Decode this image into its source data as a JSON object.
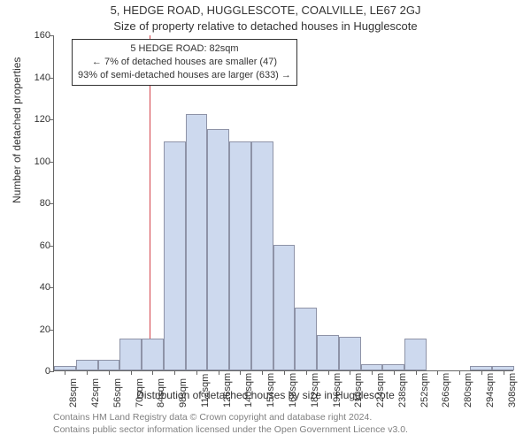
{
  "title": "5, HEDGE ROAD, HUGGLESCOTE, COALVILLE, LE67 2GJ",
  "subtitle": "Size of property relative to detached houses in Hugglescote",
  "yaxis_title": "Number of detached properties",
  "xaxis_title": "Distribution of detached houses by size in Hugglescote",
  "chart": {
    "type": "histogram",
    "bar_color": "#cdd9ee",
    "bar_border_color": "rgba(100,100,120,0.6)",
    "marker_color": "#d4424a",
    "marker_x": 82,
    "background": "#ffffff",
    "xlim": [
      21,
      315
    ],
    "ylim": [
      0,
      160
    ],
    "ytick_step": 20,
    "x_categories": [
      28,
      42,
      56,
      70,
      84,
      98,
      112,
      126,
      140,
      154,
      168,
      182,
      196,
      210,
      224,
      238,
      252,
      266,
      280,
      294,
      308
    ],
    "x_unit": "sqm",
    "y_values": [
      2,
      5,
      5,
      15,
      15,
      109,
      122,
      115,
      109,
      109,
      60,
      30,
      17,
      16,
      3,
      3,
      15,
      0,
      0,
      2,
      2
    ],
    "bar_width_units": 14
  },
  "info_box": {
    "line1": "5 HEDGE ROAD: 82sqm",
    "line2": "← 7% of detached houses are smaller (47)",
    "line3": "93% of semi-detached houses are larger (633) →"
  },
  "attribution": {
    "line1": "Contains HM Land Registry data © Crown copyright and database right 2024.",
    "line2": "Contains public sector information licensed under the Open Government Licence v3.0."
  }
}
